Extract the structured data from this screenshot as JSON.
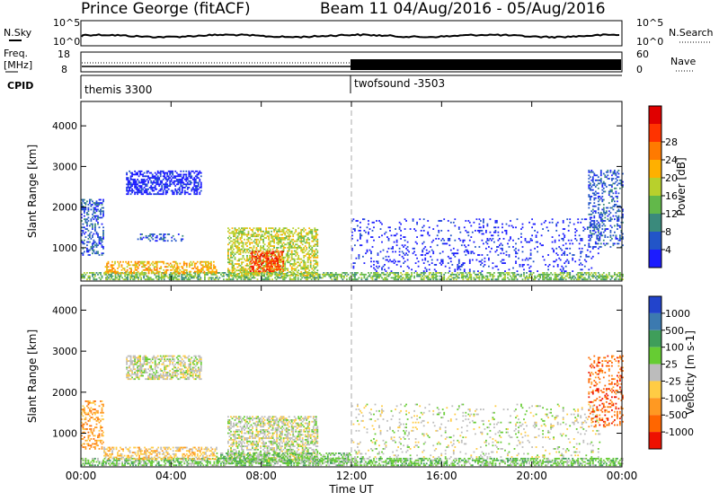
{
  "header": {
    "station": "Prince George (fitACF)",
    "beam_info": "Beam 11 04/Aug/2016 - 05/Aug/2016"
  },
  "strip_labels": {
    "nsky": "N.Sky",
    "nsky_top_tick": "10^5",
    "nsky_bottom_tick": "10^0",
    "nsearch": "N.Search",
    "nsearch_top_tick": "10^5",
    "nsearch_bottom_tick": "10^0",
    "freq": "Freq.",
    "freq_unit": "[MHz]",
    "freq_top_tick": "18",
    "freq_bottom_tick": "8",
    "nave": "Nave",
    "nave_top_tick": "60",
    "nave_bottom_tick": "0",
    "cpid": "CPID",
    "cpid_mode_1": "themis 3300",
    "cpid_mode_2": "twofsound -3503"
  },
  "chart_data": [
    {
      "type": "heatmap",
      "title": "",
      "xlabel": "Time UT",
      "ylabel": "Slant Range [km]",
      "x_ticks": [
        "00:00",
        "04:00",
        "08:00",
        "12:00",
        "16:00",
        "20:00",
        "00:00"
      ],
      "xlim": [
        0,
        24
      ],
      "y_ticks": [
        "1000",
        "2000",
        "3000",
        "4000"
      ],
      "ylim": [
        180,
        4600
      ],
      "colorbar_label": "Power [dB]",
      "colorbar_ticks": [
        "4",
        "8",
        "12",
        "16",
        "20",
        "24",
        "28"
      ],
      "colorbar_colors": [
        "#1c1cff",
        "#2255c8",
        "#3a8a7c",
        "#62b84a",
        "#b8d02c",
        "#ffb000",
        "#ff7a00",
        "#ff3300",
        "#e00000"
      ],
      "scatter_regions": [
        {
          "t0": 0.0,
          "t1": 24.0,
          "r0": 200,
          "r1": 400,
          "level": 3,
          "density": 0.55
        },
        {
          "t0": 0.0,
          "t1": 1.0,
          "r0": 800,
          "r1": 2200,
          "level": 1,
          "density": 0.35
        },
        {
          "t0": 2.0,
          "t1": 5.3,
          "r0": 2300,
          "r1": 2900,
          "level": 0,
          "density": 0.55
        },
        {
          "t0": 2.5,
          "t1": 4.5,
          "r0": 1150,
          "r1": 1350,
          "level": 1,
          "density": 0.3
        },
        {
          "t0": 1.0,
          "t1": 6.0,
          "r0": 350,
          "r1": 650,
          "level": 5,
          "density": 0.45
        },
        {
          "t0": 6.5,
          "t1": 10.5,
          "r0": 300,
          "r1": 1500,
          "level": 4,
          "density": 0.5
        },
        {
          "t0": 7.5,
          "t1": 9.0,
          "r0": 400,
          "r1": 900,
          "level": 7,
          "density": 0.5
        },
        {
          "t0": 12.0,
          "t1": 23.0,
          "r0": 400,
          "r1": 1700,
          "level": 0,
          "density": 0.12
        },
        {
          "t0": 22.5,
          "t1": 24.0,
          "r0": 1000,
          "r1": 2900,
          "level": 1,
          "density": 0.3
        }
      ]
    },
    {
      "type": "heatmap",
      "title": "",
      "xlabel": "Time UT",
      "ylabel": "Slant Range [km]",
      "x_ticks": [
        "00:00",
        "04:00",
        "08:00",
        "12:00",
        "16:00",
        "20:00",
        "00:00"
      ],
      "xlim": [
        0,
        24
      ],
      "y_ticks": [
        "1000",
        "2000",
        "3000",
        "4000"
      ],
      "ylim": [
        180,
        4600
      ],
      "colorbar_label": "Velocity [m s-1]",
      "colorbar_ticks": [
        "1000",
        "500",
        "100",
        "25",
        "-25",
        "-100",
        "-500",
        "-1000"
      ],
      "colorbar_colors": [
        "#2244cc",
        "#3c7ab0",
        "#3f9e5a",
        "#66cc33",
        "#bcbcbc",
        "#ffcc44",
        "#ff9922",
        "#ff6600",
        "#ee1100"
      ],
      "scatter_regions": [
        {
          "t0": 0.0,
          "t1": 24.0,
          "r0": 200,
          "r1": 400,
          "level": 3,
          "density": 0.55
        },
        {
          "t0": 0.0,
          "t1": 1.0,
          "r0": 600,
          "r1": 1800,
          "level": 6,
          "density": 0.35
        },
        {
          "t0": 2.0,
          "t1": 5.3,
          "r0": 2300,
          "r1": 2900,
          "level": 4,
          "density": 0.55
        },
        {
          "t0": 1.0,
          "t1": 6.0,
          "r0": 350,
          "r1": 650,
          "level": 5,
          "density": 0.45
        },
        {
          "t0": 6.5,
          "t1": 10.5,
          "r0": 300,
          "r1": 1400,
          "level": 4,
          "density": 0.5
        },
        {
          "t0": 6.0,
          "t1": 12.0,
          "r0": 250,
          "r1": 500,
          "level": 3,
          "density": 0.5
        },
        {
          "t0": 12.0,
          "t1": 23.0,
          "r0": 400,
          "r1": 1700,
          "level": 4,
          "density": 0.1
        },
        {
          "t0": 22.5,
          "t1": 24.0,
          "r0": 1100,
          "r1": 2900,
          "level": 7,
          "density": 0.25
        }
      ]
    }
  ]
}
